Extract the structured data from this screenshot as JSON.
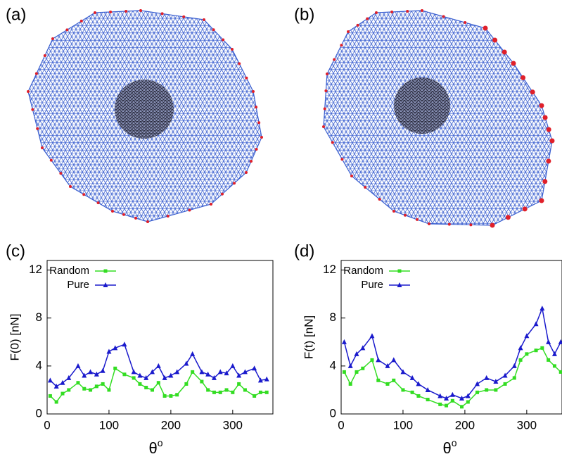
{
  "panels": [
    {
      "label": "(a)"
    },
    {
      "label": "(b)"
    }
  ],
  "chart_data": [
    {
      "type": "line",
      "panel_label": "(c)",
      "ylabel": "F(0) [nN]",
      "xlabel": "θ",
      "xlabel_superscript": "o",
      "x": [
        5,
        15,
        25,
        35,
        50,
        60,
        70,
        80,
        90,
        100,
        110,
        125,
        140,
        150,
        160,
        170,
        180,
        190,
        200,
        210,
        225,
        235,
        250,
        260,
        270,
        280,
        290,
        300,
        310,
        320,
        335,
        345,
        355
      ],
      "series": [
        {
          "name": "Random",
          "color": "#33dd22",
          "marker": "square",
          "values": [
            1.5,
            1,
            1.7,
            2,
            2.6,
            2.1,
            2,
            2.3,
            2.5,
            2,
            3.8,
            3.3,
            3,
            2.5,
            2.2,
            2,
            2.6,
            1.5,
            1.5,
            1.6,
            2.5,
            3.5,
            2.7,
            2,
            1.8,
            1.8,
            2,
            1.8,
            2.5,
            2,
            1.5,
            1.8,
            1.8
          ]
        },
        {
          "name": "Pure",
          "color": "#1a1acc",
          "marker": "triangle",
          "values": [
            2.8,
            2.3,
            2.6,
            3,
            4,
            3.2,
            3.5,
            3.3,
            3.6,
            5.2,
            5.5,
            5.8,
            3.5,
            3.2,
            3,
            3.5,
            4,
            3,
            3.2,
            3.5,
            4.2,
            5,
            3.5,
            3.3,
            3,
            3.5,
            3.4,
            4,
            3.2,
            3.5,
            3.8,
            2.8,
            2.9
          ]
        }
      ],
      "xlim": [
        0,
        365
      ],
      "xticks": [
        0,
        100,
        200,
        300
      ],
      "ylim": [
        0,
        12.8
      ],
      "yticks": [
        0,
        4,
        8,
        12
      ],
      "legend": "top-left"
    },
    {
      "type": "line",
      "panel_label": "(d)",
      "ylabel": "F(t) [nN]",
      "xlabel": "θ",
      "xlabel_superscript": "o",
      "x": [
        5,
        15,
        25,
        35,
        50,
        60,
        75,
        85,
        100,
        115,
        125,
        140,
        160,
        170,
        180,
        195,
        205,
        220,
        235,
        250,
        265,
        280,
        290,
        300,
        315,
        325,
        335,
        345,
        355
      ],
      "series": [
        {
          "name": "Random",
          "color": "#33dd22",
          "marker": "square",
          "values": [
            3.5,
            2.5,
            3.5,
            3.8,
            4.5,
            2.8,
            2.5,
            2.8,
            2,
            1.8,
            1.5,
            1.2,
            0.8,
            0.7,
            1.1,
            0.6,
            1,
            1.8,
            2,
            2,
            2.5,
            3,
            4.5,
            5,
            5.3,
            5.5,
            4.5,
            4,
            3.5
          ]
        },
        {
          "name": "Pure",
          "color": "#1a1acc",
          "marker": "triangle",
          "values": [
            6,
            4,
            5,
            5.5,
            6.5,
            4.5,
            4,
            4.5,
            3.5,
            3,
            2.5,
            2,
            1.5,
            1.3,
            1.6,
            1.3,
            1.5,
            2.5,
            3,
            2.7,
            3.2,
            4,
            5.5,
            6.5,
            7.5,
            8.8,
            6,
            5,
            6
          ]
        }
      ],
      "xlim": [
        0,
        357
      ],
      "xticks": [
        0,
        100,
        200,
        300
      ],
      "ylim": [
        0,
        12.8
      ],
      "yticks": [
        0,
        4,
        8,
        12
      ],
      "legend": "top-left"
    }
  ]
}
